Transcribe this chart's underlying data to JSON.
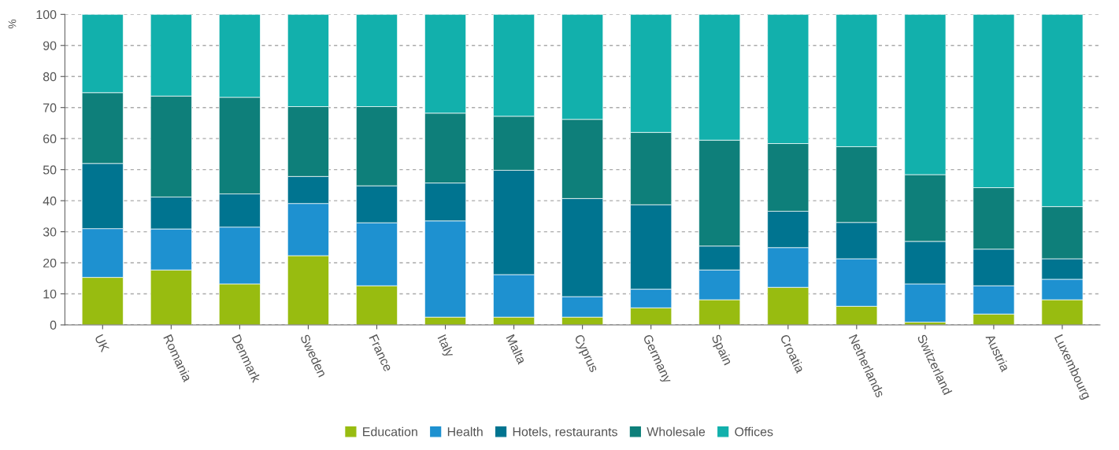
{
  "chart_data": {
    "type": "bar",
    "stacked": true,
    "ylabel": "%",
    "categories": [
      "UK",
      "Romania",
      "Denmark",
      "Sweden",
      "France",
      "Italy",
      "Malta",
      "Cyprus",
      "Germany",
      "Spain",
      "Croatia",
      "Netherlands",
      "Switzerland",
      "Austria",
      "Luxembourg"
    ],
    "series": [
      {
        "name": "Education",
        "color": "#98bc10",
        "values": [
          15.3,
          17.7,
          13.2,
          22.3,
          12.6,
          2.5,
          2.5,
          2.5,
          5.5,
          8.1,
          12.1,
          6.0,
          0.9,
          3.5,
          8.1
        ]
      },
      {
        "name": "Health",
        "color": "#1e91d0",
        "values": [
          15.7,
          13.2,
          18.3,
          16.8,
          20.3,
          31.0,
          13.7,
          6.6,
          6.0,
          9.6,
          12.8,
          15.3,
          12.3,
          9.1,
          6.6
        ]
      },
      {
        "name": "Hotels, restaurants",
        "color": "#007490",
        "values": [
          21.0,
          10.3,
          10.7,
          8.7,
          11.9,
          12.2,
          33.6,
          31.6,
          27.2,
          7.7,
          11.7,
          11.7,
          13.7,
          11.8,
          6.6
        ]
      },
      {
        "name": "Wholesale",
        "color": "#0e7f7a",
        "values": [
          22.8,
          32.5,
          31.1,
          22.5,
          25.5,
          22.5,
          17.4,
          25.5,
          23.3,
          34.1,
          21.8,
          24.4,
          21.5,
          19.8,
          16.8
        ]
      },
      {
        "name": "Offices",
        "color": "#12b0ac",
        "values": [
          25.2,
          26.3,
          26.7,
          29.7,
          29.7,
          31.8,
          32.8,
          33.8,
          38.0,
          40.5,
          41.6,
          42.6,
          51.6,
          55.8,
          61.9
        ]
      }
    ],
    "ylim": [
      0,
      100
    ],
    "yticks": [
      0,
      10,
      20,
      30,
      40,
      50,
      60,
      70,
      80,
      90,
      100
    ],
    "grid": "y",
    "legend": "bottom"
  }
}
